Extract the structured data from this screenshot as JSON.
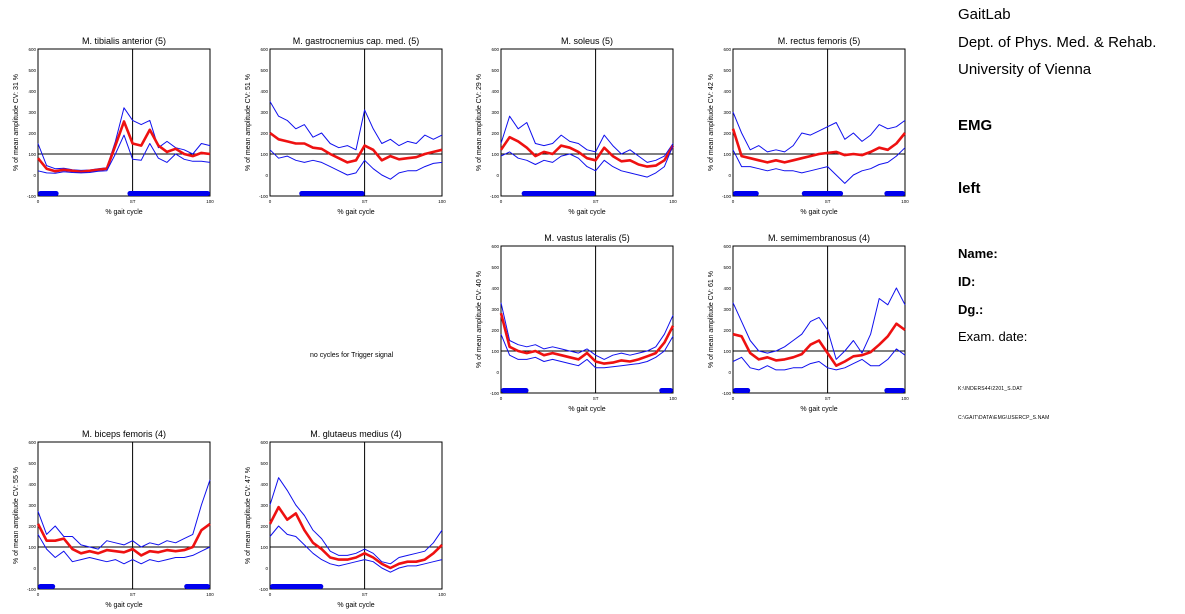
{
  "info": {
    "lab": "GaitLab",
    "dept": "Dept. of Phys. Med. & Rehab.",
    "univ": "University of Vienna",
    "mode": "EMG",
    "side": "left",
    "name_label": "Name:",
    "id_label": "ID:",
    "dg_label": "Dg.:",
    "exam_label": "Exam. date:",
    "file1": "K:\\INDERS44\\2201_S.DAT",
    "file2": "C:\\GAIT\\DATA\\EMG\\USERCP_S.NAM"
  },
  "no_cycles_text": "no cycles for Trigger signal",
  "chart_data": [
    {
      "type": "line",
      "title": "M. tibialis anterior (5)",
      "ylabel": "% of mean amplitude CV: 31 %",
      "xlabel": "% gait cycle",
      "xticks": [
        "0",
        "ST",
        "100"
      ],
      "yticks": [
        "-100",
        "0",
        "100",
        "200",
        "300",
        "400",
        "500",
        "600"
      ],
      "ylim": [
        -100,
        600
      ],
      "st_percent": 55,
      "reference": 100,
      "x": [
        0,
        5,
        10,
        15,
        20,
        25,
        30,
        35,
        40,
        45,
        50,
        55,
        60,
        65,
        70,
        75,
        80,
        85,
        90,
        95,
        100
      ],
      "series": [
        {
          "values": [
            150,
            45,
            30,
            32,
            25,
            22,
            24,
            30,
            35,
            160,
            320,
            260,
            240,
            260,
            130,
            160,
            130,
            120,
            100,
            150,
            140
          ]
        },
        {
          "values": [
            80,
            30,
            18,
            25,
            20,
            15,
            20,
            25,
            30,
            140,
            255,
            150,
            140,
            215,
            140,
            110,
            125,
            100,
            90,
            105,
            100
          ]
        },
        {
          "values": [
            20,
            10,
            8,
            15,
            12,
            10,
            12,
            18,
            20,
            100,
            190,
            75,
            70,
            150,
            80,
            60,
            100,
            75,
            65,
            65,
            60
          ]
        }
      ],
      "active_intervals": [
        [
          0,
          12
        ],
        [
          52,
          100
        ]
      ]
    },
    {
      "type": "line",
      "title": "M. gastrocnemius cap. med. (5)",
      "ylabel": "% of mean amplitude CV: 51 %",
      "xlabel": "% gait cycle",
      "xticks": [
        "0",
        "ST",
        "100"
      ],
      "yticks": [
        "-100",
        "0",
        "100",
        "200",
        "300",
        "400",
        "500",
        "600"
      ],
      "ylim": [
        -100,
        600
      ],
      "st_percent": 55,
      "reference": 100,
      "x": [
        0,
        5,
        10,
        15,
        20,
        25,
        30,
        35,
        40,
        45,
        50,
        55,
        60,
        65,
        70,
        75,
        80,
        85,
        90,
        95,
        100
      ],
      "series": [
        {
          "values": [
            350,
            280,
            260,
            220,
            240,
            180,
            200,
            150,
            130,
            140,
            120,
            310,
            220,
            150,
            170,
            140,
            160,
            150,
            190,
            170,
            190
          ]
        },
        {
          "values": [
            200,
            170,
            160,
            150,
            150,
            130,
            125,
            100,
            80,
            60,
            70,
            140,
            120,
            70,
            90,
            75,
            80,
            85,
            100,
            110,
            120
          ]
        },
        {
          "values": [
            120,
            80,
            90,
            70,
            60,
            70,
            60,
            40,
            20,
            0,
            10,
            70,
            30,
            0,
            -20,
            10,
            20,
            20,
            40,
            55,
            60
          ]
        }
      ],
      "active_intervals": [
        [
          17,
          55
        ]
      ]
    },
    {
      "type": "line",
      "title": "M. soleus (5)",
      "ylabel": "% of mean amplitude CV: 29 %",
      "xlabel": "% gait cycle",
      "xticks": [
        "0",
        "ST",
        "100"
      ],
      "yticks": [
        "-100",
        "0",
        "100",
        "200",
        "300",
        "400",
        "500",
        "600"
      ],
      "ylim": [
        -100,
        600
      ],
      "st_percent": 55,
      "reference": 100,
      "x": [
        0,
        5,
        10,
        15,
        20,
        25,
        30,
        35,
        40,
        45,
        50,
        55,
        60,
        65,
        70,
        75,
        80,
        85,
        90,
        95,
        100
      ],
      "series": [
        {
          "values": [
            150,
            280,
            220,
            250,
            150,
            140,
            150,
            190,
            160,
            150,
            120,
            110,
            190,
            140,
            100,
            120,
            90,
            60,
            70,
            90,
            150
          ]
        },
        {
          "values": [
            120,
            180,
            160,
            130,
            90,
            110,
            100,
            140,
            130,
            110,
            80,
            70,
            130,
            90,
            65,
            70,
            50,
            40,
            45,
            70,
            140
          ]
        },
        {
          "values": [
            90,
            110,
            80,
            70,
            50,
            70,
            60,
            90,
            100,
            80,
            40,
            20,
            70,
            40,
            20,
            10,
            0,
            -10,
            10,
            40,
            140
          ]
        }
      ],
      "active_intervals": [
        [
          12,
          55
        ]
      ]
    },
    {
      "type": "line",
      "title": "M. rectus femoris (5)",
      "ylabel": "% of mean amplitude CV: 42 %",
      "xlabel": "% gait cycle",
      "xticks": [
        "0",
        "ST",
        "100"
      ],
      "yticks": [
        "-100",
        "0",
        "100",
        "200",
        "300",
        "400",
        "500",
        "600"
      ],
      "ylim": [
        -100,
        600
      ],
      "st_percent": 55,
      "reference": 100,
      "x": [
        0,
        5,
        10,
        15,
        20,
        25,
        30,
        35,
        40,
        45,
        50,
        55,
        60,
        65,
        70,
        75,
        80,
        85,
        90,
        95,
        100
      ],
      "series": [
        {
          "values": [
            300,
            200,
            120,
            140,
            110,
            120,
            110,
            140,
            200,
            190,
            210,
            230,
            250,
            170,
            200,
            160,
            190,
            240,
            220,
            230,
            260
          ]
        },
        {
          "values": [
            220,
            90,
            80,
            70,
            60,
            70,
            60,
            70,
            80,
            90,
            100,
            105,
            110,
            95,
            100,
            95,
            110,
            130,
            120,
            150,
            200
          ]
        },
        {
          "values": [
            120,
            40,
            40,
            30,
            20,
            30,
            20,
            20,
            10,
            20,
            30,
            40,
            0,
            -40,
            0,
            20,
            30,
            50,
            60,
            90,
            130
          ]
        }
      ],
      "active_intervals": [
        [
          0,
          15
        ],
        [
          40,
          64
        ],
        [
          88,
          100
        ]
      ]
    },
    {
      "type": "line",
      "title": "M. vastus lateralis (5)",
      "ylabel": "% of mean amplitude CV: 40 %",
      "xlabel": "% gait cycle",
      "xticks": [
        "0",
        "ST",
        "100"
      ],
      "yticks": [
        "-100",
        "0",
        "100",
        "200",
        "300",
        "400",
        "500",
        "600"
      ],
      "ylim": [
        -100,
        600
      ],
      "st_percent": 55,
      "reference": 100,
      "x": [
        0,
        5,
        10,
        15,
        20,
        25,
        30,
        35,
        40,
        45,
        50,
        55,
        60,
        65,
        70,
        75,
        80,
        85,
        90,
        95,
        100
      ],
      "series": [
        {
          "values": [
            330,
            150,
            130,
            120,
            130,
            110,
            120,
            110,
            100,
            90,
            110,
            80,
            60,
            80,
            90,
            80,
            90,
            100,
            120,
            180,
            270
          ]
        },
        {
          "values": [
            280,
            120,
            100,
            90,
            100,
            80,
            90,
            80,
            70,
            60,
            90,
            50,
            40,
            45,
            55,
            50,
            60,
            75,
            90,
            140,
            220
          ]
        },
        {
          "values": [
            180,
            80,
            60,
            60,
            70,
            50,
            60,
            50,
            40,
            30,
            60,
            20,
            20,
            25,
            30,
            35,
            40,
            50,
            70,
            100,
            170
          ]
        }
      ],
      "active_intervals": [
        [
          0,
          16
        ],
        [
          92,
          100
        ]
      ]
    },
    {
      "type": "line",
      "title": "M. semimembranosus (4)",
      "ylabel": "% of mean amplitude CV: 61 %",
      "xlabel": "% gait cycle",
      "xticks": [
        "0",
        "ST",
        "100"
      ],
      "yticks": [
        "-100",
        "0",
        "100",
        "200",
        "300",
        "400",
        "500",
        "600"
      ],
      "ylim": [
        -100,
        600
      ],
      "st_percent": 55,
      "reference": 100,
      "x": [
        0,
        5,
        10,
        15,
        20,
        25,
        30,
        35,
        40,
        45,
        50,
        55,
        60,
        65,
        70,
        75,
        80,
        85,
        90,
        95,
        100
      ],
      "series": [
        {
          "values": [
            330,
            240,
            150,
            100,
            90,
            100,
            120,
            150,
            180,
            240,
            260,
            200,
            60,
            100,
            150,
            90,
            180,
            350,
            320,
            400,
            320
          ]
        },
        {
          "values": [
            180,
            170,
            90,
            60,
            70,
            55,
            60,
            70,
            85,
            130,
            150,
            90,
            30,
            50,
            75,
            80,
            95,
            130,
            170,
            230,
            200
          ]
        },
        {
          "values": [
            50,
            70,
            20,
            10,
            30,
            10,
            10,
            20,
            20,
            40,
            50,
            20,
            10,
            20,
            40,
            60,
            30,
            30,
            60,
            110,
            80
          ]
        }
      ],
      "active_intervals": [
        [
          0,
          10
        ],
        [
          88,
          100
        ]
      ]
    },
    {
      "type": "line",
      "title": "M. biceps femoris (4)",
      "ylabel": "% of mean amplitude CV: 55 %",
      "xlabel": "% gait cycle",
      "xticks": [
        "0",
        "ST",
        "100"
      ],
      "yticks": [
        "-100",
        "0",
        "100",
        "200",
        "300",
        "400",
        "500",
        "600"
      ],
      "ylim": [
        -100,
        600
      ],
      "st_percent": 55,
      "reference": 100,
      "x": [
        0,
        5,
        10,
        15,
        20,
        25,
        30,
        35,
        40,
        45,
        50,
        55,
        60,
        65,
        70,
        75,
        80,
        85,
        90,
        95,
        100
      ],
      "series": [
        {
          "values": [
            270,
            160,
            200,
            150,
            150,
            110,
            100,
            90,
            130,
            120,
            110,
            130,
            100,
            120,
            110,
            130,
            120,
            140,
            160,
            300,
            420
          ]
        },
        {
          "values": [
            210,
            130,
            130,
            140,
            90,
            70,
            80,
            70,
            85,
            80,
            75,
            90,
            60,
            80,
            75,
            85,
            80,
            85,
            100,
            180,
            210
          ]
        },
        {
          "values": [
            160,
            90,
            50,
            80,
            30,
            40,
            50,
            40,
            30,
            40,
            20,
            40,
            20,
            40,
            30,
            40,
            50,
            50,
            60,
            80,
            100
          ]
        }
      ],
      "active_intervals": [
        [
          0,
          10
        ],
        [
          85,
          100
        ]
      ]
    },
    {
      "type": "line",
      "title": "M. glutaeus medius (4)",
      "ylabel": "% of mean amplitude CV: 47 %",
      "xlabel": "% gait cycle",
      "xticks": [
        "0",
        "ST",
        "100"
      ],
      "yticks": [
        "-100",
        "0",
        "100",
        "200",
        "300",
        "400",
        "500",
        "600"
      ],
      "ylim": [
        -100,
        600
      ],
      "st_percent": 55,
      "reference": 100,
      "x": [
        0,
        5,
        10,
        15,
        20,
        25,
        30,
        35,
        40,
        45,
        50,
        55,
        60,
        65,
        70,
        75,
        80,
        85,
        90,
        95,
        100
      ],
      "series": [
        {
          "values": [
            300,
            430,
            370,
            300,
            250,
            180,
            140,
            80,
            60,
            60,
            70,
            90,
            70,
            30,
            20,
            50,
            60,
            70,
            80,
            120,
            180
          ]
        },
        {
          "values": [
            210,
            290,
            230,
            260,
            180,
            120,
            90,
            50,
            40,
            40,
            50,
            70,
            50,
            20,
            0,
            20,
            30,
            30,
            40,
            70,
            110
          ]
        },
        {
          "values": [
            150,
            200,
            160,
            150,
            110,
            70,
            40,
            20,
            10,
            20,
            30,
            40,
            30,
            0,
            -20,
            0,
            10,
            10,
            20,
            30,
            40
          ]
        }
      ],
      "active_intervals": [
        [
          0,
          31
        ]
      ]
    }
  ]
}
